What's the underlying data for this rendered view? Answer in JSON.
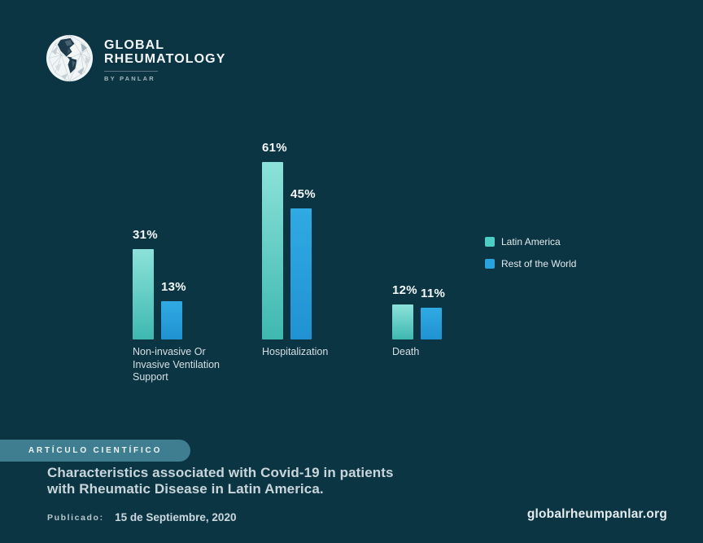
{
  "colors": {
    "background": "#0c3544",
    "latin_america": "#4ecdc4",
    "rest_of_world": "#29a3dd",
    "badge_pill": "#3f7e90",
    "title_text": "#c8d5db"
  },
  "logo": {
    "line1": "GLOBAL",
    "line2": "RHEUMATOLOGY",
    "byline": "BY PANLAR"
  },
  "chart_data": {
    "type": "bar",
    "categories": [
      "Non-invasive Or Invasive Ventilation Support",
      "Hospitalization",
      "Death"
    ],
    "category_lines": [
      [
        "Non-invasive Or",
        "Invasive Ventilation",
        "Support"
      ],
      [
        "Hospitalization"
      ],
      [
        "Death"
      ]
    ],
    "series": [
      {
        "name": "Latin America",
        "color": "#4ecdc4",
        "values": [
          31,
          61,
          12
        ]
      },
      {
        "name": "Rest of the World",
        "color": "#29a3dd",
        "values": [
          13,
          45,
          11
        ]
      }
    ],
    "value_label_format": "percent",
    "title": "",
    "xlabel": "",
    "ylabel": "",
    "ylim": [
      0,
      65
    ],
    "grid": false,
    "legend_position": "right"
  },
  "legend": {
    "items": [
      {
        "label": "Latin America",
        "color": "#4ecdc4"
      },
      {
        "label": "Rest of the World",
        "color": "#29a3dd"
      }
    ]
  },
  "footer": {
    "badge": "ARTÍCULO CIENTÍFICO",
    "title_line1": "Characteristics associated with Covid-19 in patients",
    "title_line2": "with Rheumatic Disease in Latin America.",
    "published_label": "Publicado:",
    "published_value": "15 de Septiembre, 2020",
    "website": "globalrheumpanlar.org"
  }
}
